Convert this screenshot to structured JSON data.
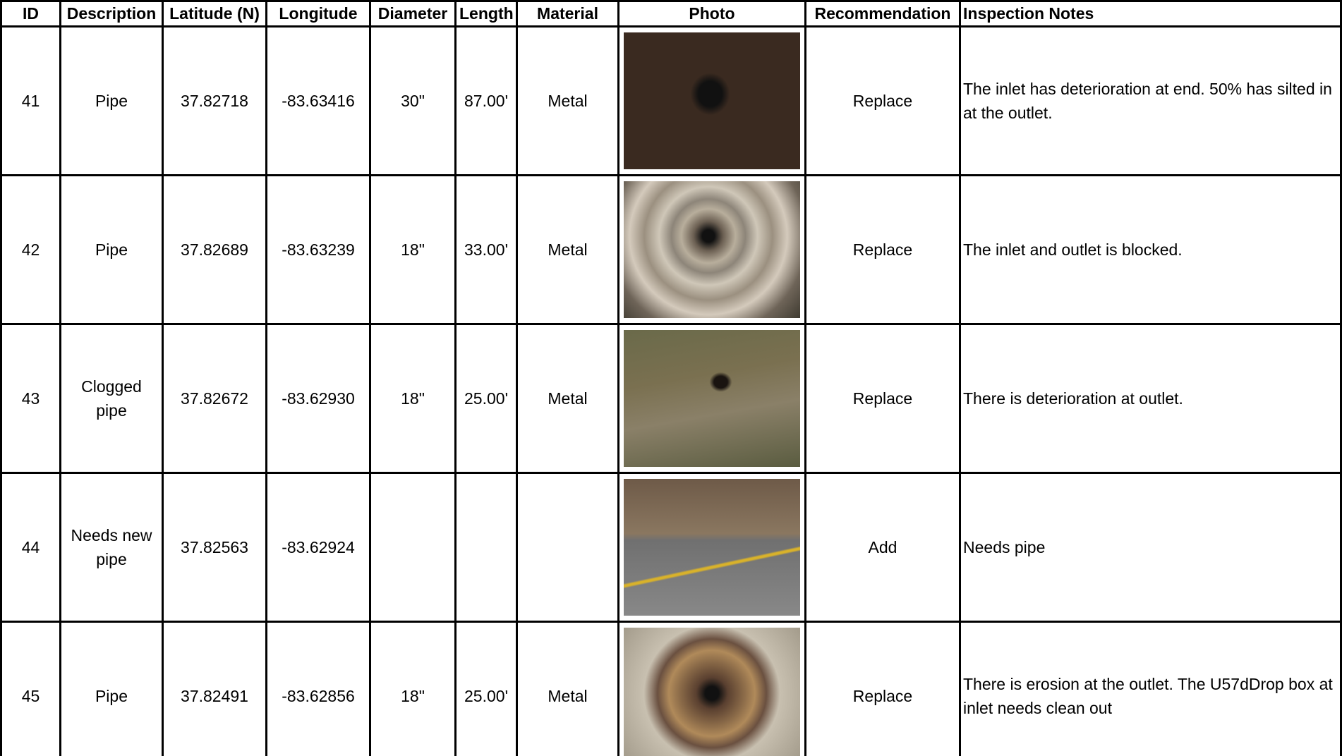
{
  "table": {
    "headers": [
      "ID",
      "Description",
      "Latitude (N)",
      "Longitude",
      "Diameter",
      "Length",
      "Material",
      "Photo",
      "Recommendation",
      "Inspection Notes"
    ],
    "rows": [
      {
        "id": "41",
        "description": "Pipe",
        "latitude": "37.82718",
        "longitude": "-83.63416",
        "diameter": "30\"",
        "length": "87.00'",
        "material": "Metal",
        "recommendation": "Replace",
        "notes": "The inlet has deterioration at end. 50% has silted in at the outlet."
      },
      {
        "id": "42",
        "description": "Pipe",
        "latitude": "37.82689",
        "longitude": "-83.63239",
        "diameter": "18\"",
        "length": "33.00'",
        "material": "Metal",
        "recommendation": "Replace",
        "notes": "The inlet and outlet is blocked."
      },
      {
        "id": "43",
        "description": "Clogged pipe",
        "latitude": "37.82672",
        "longitude": "-83.62930",
        "diameter": "18\"",
        "length": "25.00'",
        "material": "Metal",
        "recommendation": "Replace",
        "notes": "There is deterioration at outlet."
      },
      {
        "id": "44",
        "description": "Needs new pipe",
        "latitude": "37.82563",
        "longitude": "-83.62924",
        "diameter": null,
        "length": null,
        "material": null,
        "recommendation": "Add",
        "notes": "Needs pipe"
      },
      {
        "id": "45",
        "description": "Pipe",
        "latitude": "37.82491",
        "longitude": "-83.62856",
        "diameter": "18\"",
        "length": "25.00'",
        "material": "Metal",
        "recommendation": "Replace",
        "notes": "There is erosion at the outlet. The U57dDrop box at inlet needs clean out"
      }
    ]
  }
}
